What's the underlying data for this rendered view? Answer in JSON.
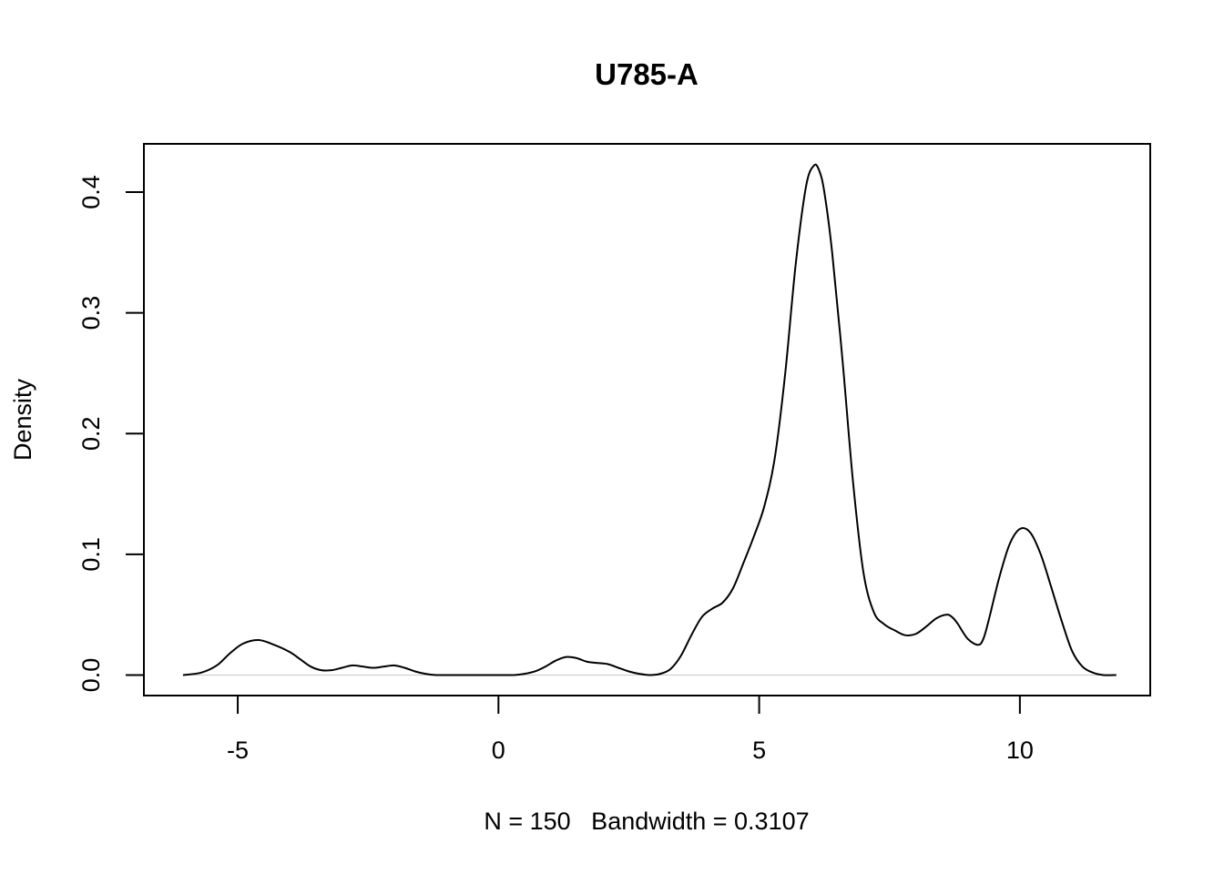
{
  "chart_data": {
    "type": "line",
    "title": "U785-A",
    "xlabel": "N = 150   Bandwidth = 0.3107",
    "ylabel": "Density",
    "xlim": [
      -6.8,
      12.5
    ],
    "ylim": [
      -0.017,
      0.44
    ],
    "x_ticks": [
      -5,
      0,
      5,
      10
    ],
    "x_tick_labels": [
      "-5",
      "0",
      "5",
      "10"
    ],
    "y_ticks": [
      0.0,
      0.1,
      0.2,
      0.3,
      0.4
    ],
    "y_tick_labels": [
      "0.0",
      "0.1",
      "0.2",
      "0.3",
      "0.4"
    ],
    "grid": false,
    "baseline": 0,
    "series": [
      {
        "color": "#000000",
        "x": [
          -6.05,
          -5.7,
          -5.4,
          -5.15,
          -4.9,
          -4.6,
          -4.3,
          -4.0,
          -3.8,
          -3.6,
          -3.4,
          -3.2,
          -3.0,
          -2.8,
          -2.6,
          -2.4,
          -2.2,
          -2.0,
          -1.8,
          -1.6,
          -1.4,
          -1.2,
          -1.0,
          -0.8,
          -0.5,
          0.0,
          0.3,
          0.5,
          0.7,
          0.9,
          1.1,
          1.3,
          1.5,
          1.7,
          1.9,
          2.1,
          2.3,
          2.5,
          2.7,
          2.9,
          3.1,
          3.3,
          3.5,
          3.7,
          3.9,
          4.1,
          4.3,
          4.5,
          4.7,
          4.9,
          5.1,
          5.3,
          5.5,
          5.7,
          5.9,
          6.05,
          6.15,
          6.25,
          6.4,
          6.6,
          6.8,
          7.0,
          7.2,
          7.4,
          7.6,
          7.8,
          8.0,
          8.2,
          8.4,
          8.6,
          8.7,
          8.8,
          9.0,
          9.2,
          9.3,
          9.4,
          9.6,
          9.8,
          10.0,
          10.2,
          10.4,
          10.6,
          10.8,
          11.0,
          11.2,
          11.4,
          11.6,
          11.85
        ],
        "y": [
          0.0,
          0.002,
          0.008,
          0.018,
          0.026,
          0.029,
          0.025,
          0.019,
          0.013,
          0.007,
          0.004,
          0.004,
          0.006,
          0.008,
          0.007,
          0.006,
          0.007,
          0.008,
          0.006,
          0.003,
          0.001,
          0.0,
          0.0,
          0.0,
          0.0,
          0.0,
          0.0,
          0.001,
          0.003,
          0.007,
          0.012,
          0.015,
          0.014,
          0.011,
          0.01,
          0.009,
          0.006,
          0.003,
          0.001,
          0.0,
          0.001,
          0.005,
          0.016,
          0.033,
          0.048,
          0.055,
          0.06,
          0.072,
          0.093,
          0.115,
          0.14,
          0.18,
          0.25,
          0.34,
          0.405,
          0.422,
          0.418,
          0.4,
          0.35,
          0.26,
          0.16,
          0.085,
          0.052,
          0.042,
          0.037,
          0.033,
          0.034,
          0.04,
          0.047,
          0.05,
          0.048,
          0.043,
          0.03,
          0.025,
          0.03,
          0.045,
          0.08,
          0.108,
          0.121,
          0.118,
          0.1,
          0.073,
          0.045,
          0.02,
          0.007,
          0.002,
          0.0,
          0.0
        ]
      }
    ]
  }
}
